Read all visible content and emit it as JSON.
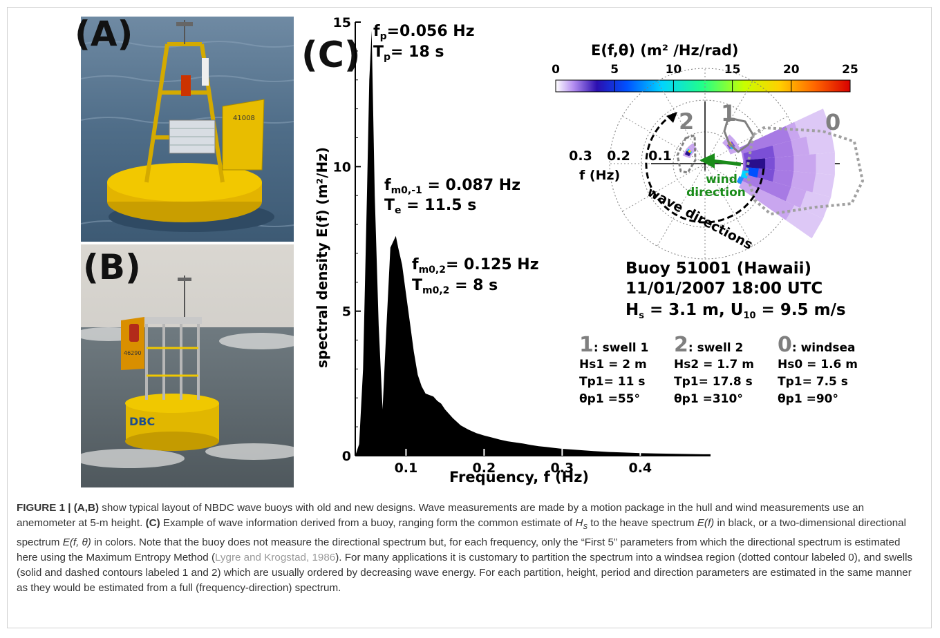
{
  "panels": {
    "a": "(A)",
    "b": "(B)",
    "c": "(C)"
  },
  "photo_a": {
    "hull_number": "41008",
    "description": "old-design NBDC wave buoy"
  },
  "photo_b": {
    "hull_number": "46290",
    "hull_text": "DBC",
    "description": "new-design NBDC wave buoy"
  },
  "spectrum": {
    "xlabel": "Frequency, f (Hz)",
    "ylabel": "spectral density E(f) (m²/Hz)",
    "ann_fp": "f",
    "ann_fp_sub": "p",
    "ann_fp_val": "=0.056 Hz",
    "ann_tp": "T",
    "ann_tp_sub": "p",
    "ann_tp_val": "= 18 s",
    "ann_fm01": "f",
    "ann_fm01_sub": "m0,-1",
    "ann_fm01_val": " = 0.087 Hz",
    "ann_te": "T",
    "ann_te_sub": "e",
    "ann_te_val": " = 11.5 s",
    "ann_fm02": "f",
    "ann_fm02_sub": "m0,2",
    "ann_fm02_val": "= 0.125 Hz",
    "ann_tm02": "T",
    "ann_tm02_sub": "m0,2",
    "ann_tm02_val": " = 8 s"
  },
  "polar": {
    "colorbar_title": "E(f,θ) (m² /Hz/rad)",
    "colorbar_ticks": [
      "0",
      "5",
      "10",
      "15",
      "20",
      "25"
    ],
    "radial_labels": [
      "0.3",
      "0.2",
      "0.1"
    ],
    "radial_axis_label": "f (Hz)",
    "part_labels": [
      "2",
      "1",
      "0"
    ],
    "wind_label_1": "wind",
    "wind_label_2": "direction",
    "wave_dir_label": "wave directions",
    "colors": {
      "swell1": "#808080",
      "windsea": "#a0a0a0",
      "wind_arrow": "#1a8c1a",
      "low": "#c9a6ef",
      "mid": "#7b4fd6",
      "high": "#2a0f8c"
    }
  },
  "info": {
    "buoy": "Buoy 51001 (Hawaii)",
    "datetime": "11/01/2007 18:00 UTC",
    "hs": "H",
    "hs_sub": "s",
    "hs_val": " = 3.1 m,  U",
    "u_sub": "10",
    "u_val": " = 9.5 m/s"
  },
  "partitions": [
    {
      "num": "1",
      "name": ": swell 1",
      "l1": "Hs1 = 2 m",
      "l2": "Tp1= 11 s",
      "l3": "θp1 =55°"
    },
    {
      "num": "2",
      "name": ": swell 2",
      "l1": "Hs2 = 1.7 m",
      "l2": "Tp1= 17.8 s",
      "l3": "θp1 =310°"
    },
    {
      "num": "0",
      "name": ": windsea",
      "l1": "Hs0 = 1.6 m",
      "l2": "Tp1= 7.5 s",
      "l3": "θp1 =90°"
    }
  ],
  "chart_data": {
    "type": "area",
    "title": "",
    "xlabel": "Frequency, f (Hz)",
    "ylabel": "spectral density E(f) (m²/Hz)",
    "xlim": [
      0.035,
      0.49
    ],
    "ylim": [
      0,
      15
    ],
    "xticks": [
      0.1,
      0.2,
      0.3,
      0.4
    ],
    "yticks": [
      0,
      5,
      10,
      15
    ],
    "x": [
      0.035,
      0.04,
      0.045,
      0.05,
      0.053,
      0.056,
      0.06,
      0.065,
      0.07,
      0.075,
      0.08,
      0.087,
      0.09,
      0.095,
      0.1,
      0.105,
      0.11,
      0.115,
      0.12,
      0.125,
      0.13,
      0.135,
      0.14,
      0.145,
      0.15,
      0.16,
      0.17,
      0.18,
      0.19,
      0.2,
      0.21,
      0.22,
      0.23,
      0.24,
      0.25,
      0.26,
      0.27,
      0.28,
      0.29,
      0.3,
      0.32,
      0.34,
      0.36,
      0.38,
      0.4,
      0.42,
      0.44,
      0.46,
      0.48,
      0.49
    ],
    "y": [
      0,
      0.4,
      3,
      9,
      13,
      14.7,
      9,
      4.5,
      1.6,
      4.5,
      7.2,
      7.6,
      7.2,
      6.6,
      5.6,
      4.6,
      3.6,
      2.8,
      2.4,
      2.15,
      2.1,
      2.05,
      1.9,
      1.8,
      1.6,
      1.3,
      1.05,
      0.9,
      0.78,
      0.7,
      0.63,
      0.56,
      0.5,
      0.46,
      0.42,
      0.37,
      0.33,
      0.3,
      0.27,
      0.24,
      0.2,
      0.16,
      0.13,
      0.11,
      0.09,
      0.08,
      0.07,
      0.06,
      0.05,
      0.05
    ],
    "series": [
      {
        "name": "",
        "color": "#000000"
      }
    ]
  },
  "caption": {
    "fig": "FIGURE 1 | ",
    "ab": "(A,B)",
    "t1": " show typical layout of NBDC wave buoys with old and new designs. Wave measurements are made by a motion package in the hull and wind measurements use an anemometer at 5-m height. ",
    "c": "(C)",
    "t2": " Example of wave information derived from a buoy, ranging form the common estimate of ",
    "hs": "H",
    "hs_sub": "S",
    "t3": " to the heave spectrum ",
    "ef": "E(f)",
    "t4": " in black, or a two-dimensional directional spectrum ",
    "eft": "E(f, θ)",
    "t5": " in colors. Note that the buoy does not measure the directional spectrum but, for each frequency, only the “First 5” parameters from which the directional spectrum is estimated here using the Maximum Entropy Method (",
    "ref": "Lygre and Krogstad, 1986",
    "t6": "). For many applications it is customary to partition the spectrum into a windsea region (dotted contour labeled 0), and swells (solid and dashed contours labeled 1 and 2) which are usually ordered by decreasing wave energy. For each partition, height, period and direction parameters are estimated in the same manner as they would be estimated from a full (frequency-direction) spectrum."
  }
}
